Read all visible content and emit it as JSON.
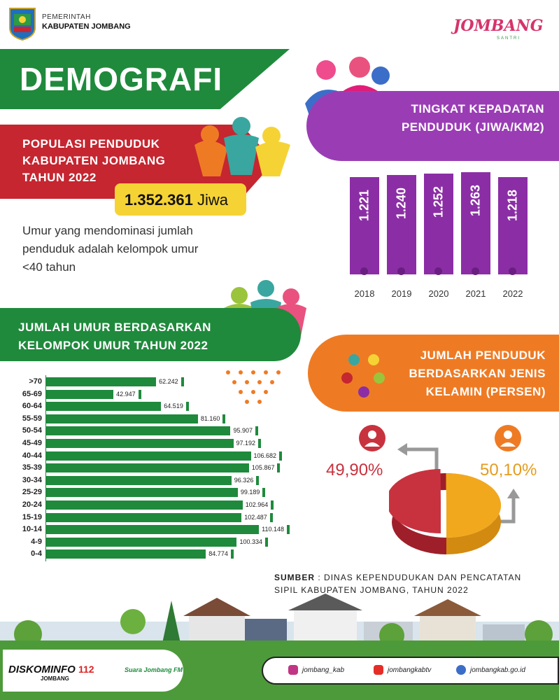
{
  "header": {
    "gov_line1": "PEMERINTAH",
    "gov_line2": "KABUPATEN JOMBANG",
    "brand": "JOMBANG",
    "brand_sub": "SANTRI"
  },
  "title": "DEMOGRAFI",
  "population": {
    "title_lines": [
      "POPULASI PENDUDUK",
      "KABUPATEN JOMBANG",
      "TAHUN 2022"
    ],
    "value": "1.352.361",
    "unit": "Jiwa",
    "note_lines": [
      "Umur yang mendominasi jumlah",
      "penduduk adalah kelompok umur",
      "<40 tahun"
    ]
  },
  "density": {
    "title_lines": [
      "TINGKAT KEPADATAN",
      "PENDUDUK (JIWA/KM2)"
    ],
    "color": "#8b2ea5"
  },
  "age": {
    "title_lines": [
      "JUMLAH UMUR BERDASARKAN",
      "KELOMPOK UMUR TAHUN 2022"
    ],
    "color": "#1f8a3c"
  },
  "gender": {
    "title_lines": [
      "JUMLAH PENDUDUK",
      "BERDASARKAN JENIS",
      "KELAMIN (PERSEN)"
    ],
    "female_label": "49,90%",
    "male_label": "50,10%",
    "female_color": "#c8323e",
    "male_color": "#f2a81d"
  },
  "source": {
    "label": "SUMBER",
    "line1": ": DINAS KEPENDUDUKAN DAN PENCATATAN",
    "line2": "SIPIL KABUPATEN JOMBANG, TAHUN 2022"
  },
  "footer": {
    "diskominfo": "DISKOMINFO",
    "diskominfo_sub": "JOMBANG",
    "emergency": "112",
    "radio": "Suara Jombang FM",
    "social": [
      {
        "icon": "instagram-icon",
        "handle": "jombang_kab",
        "color": "#c13584"
      },
      {
        "icon": "youtube-icon",
        "handle": "jombangkabtv",
        "color": "#e52d27"
      },
      {
        "icon": "web-icon",
        "handle": "jombangkab.go.id",
        "color": "#3b6ec8"
      }
    ]
  },
  "chart_data": [
    {
      "type": "bar",
      "title": "TINGKAT KEPADATAN PENDUDUK (JIWA/KM2)",
      "categories": [
        "2018",
        "2019",
        "2020",
        "2021",
        "2022"
      ],
      "values": [
        1221,
        1240,
        1252,
        1263,
        1218
      ],
      "value_labels": [
        "1.221",
        "1.240",
        "1.252",
        "1.263",
        "1.218"
      ]
    },
    {
      "type": "bar",
      "orientation": "horizontal",
      "title": "JUMLAH UMUR BERDASARKAN KELOMPOK UMUR TAHUN 2022",
      "categories": [
        ">70",
        "65-69",
        "60-64",
        "55-59",
        "50-54",
        "45-49",
        "40-44",
        "35-39",
        "30-34",
        "25-29",
        "20-24",
        "15-19",
        "10-14",
        "4-9",
        "0-4"
      ],
      "values": [
        62242,
        42947,
        64519,
        81160,
        95907,
        97192,
        106682,
        105867,
        96326,
        99189,
        102964,
        102487,
        110148,
        100334,
        84774
      ],
      "value_labels": [
        "62.242",
        "42.947",
        "64.519",
        "81.160",
        "95.907",
        "97.192",
        "106.682",
        "105.867",
        "96.326",
        "99.189",
        "102.964",
        "102.487",
        "110.148",
        "100.334",
        "84.774"
      ]
    },
    {
      "type": "pie",
      "title": "JUMLAH PENDUDUK BERDASARKAN JENIS KELAMIN (PERSEN)",
      "categories": [
        "Perempuan",
        "Laki-laki"
      ],
      "values": [
        49.9,
        50.1
      ]
    }
  ]
}
